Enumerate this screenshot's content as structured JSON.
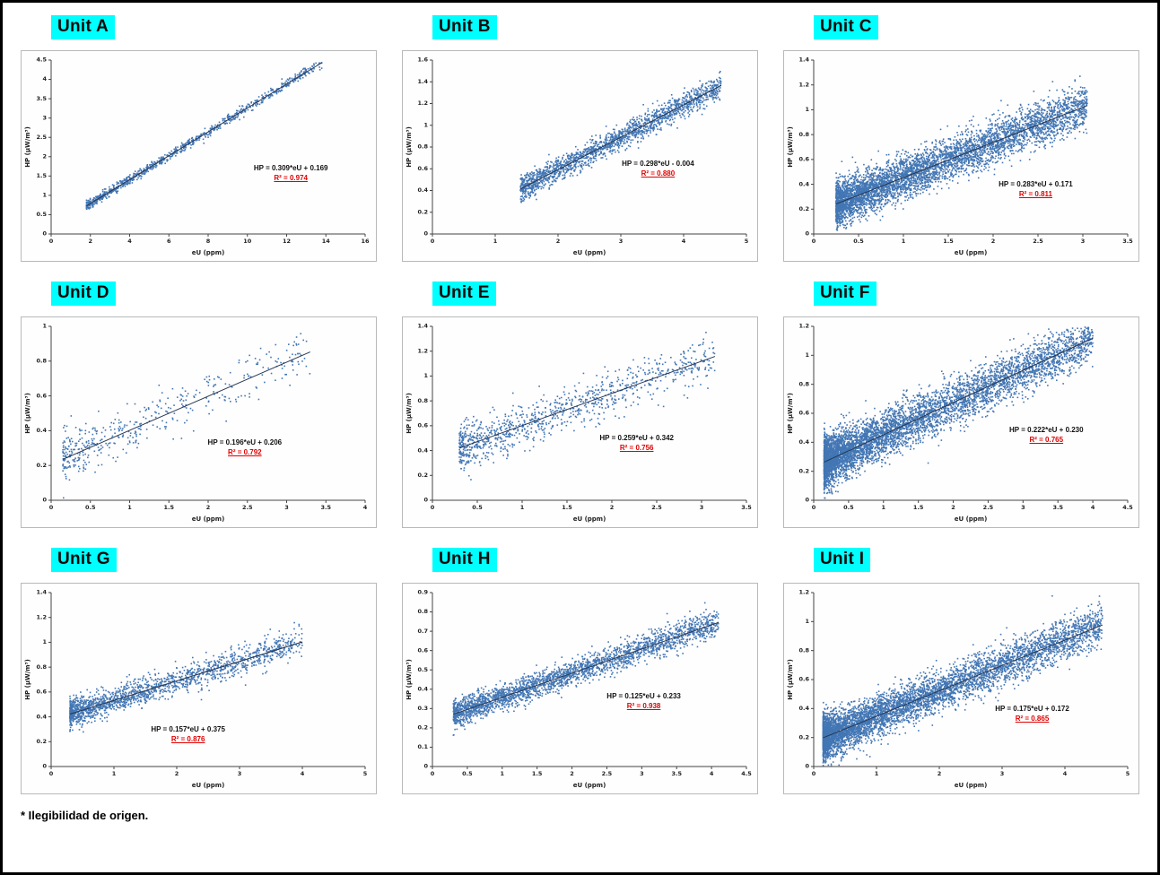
{
  "figure": {
    "footnote": "* Ilegibilidad de origen.",
    "colors": {
      "point": "#4276b4",
      "trend": "#26364f",
      "r2_text": "#e00000",
      "title_highlight": "#00ffff",
      "axis": "#444444"
    }
  },
  "chart_data": [
    {
      "type": "scatter",
      "title": "Unit A",
      "xlabel": "eU (ppm)",
      "ylabel": "HP (µW/m³)",
      "xlim": [
        0,
        16
      ],
      "xtick": 2,
      "ylim": [
        0,
        4.5
      ],
      "ytick": 0.5,
      "regression": {
        "slope": 0.309,
        "intercept": 0.169,
        "equation": "HP = 0.309*eU + 0.169",
        "r2": 0.974,
        "r2_text": "R² = 0.974"
      },
      "scatter": {
        "n": 900,
        "x_min": 1.8,
        "x_max": 13.8,
        "x_skew": 1.5,
        "noise": 0.06,
        "seed": 11
      },
      "annotation_pos": {
        "fx": 0.76,
        "fy": 0.58
      }
    },
    {
      "type": "scatter",
      "title": "Unit B",
      "xlabel": "eU (ppm)",
      "ylabel": "HP (µW/m³)",
      "xlim": [
        0,
        5
      ],
      "xtick": 1,
      "ylim": [
        0,
        1.6
      ],
      "ytick": 0.2,
      "regression": {
        "slope": 0.298,
        "intercept": -0.004,
        "equation": "HP = 0.298*eU - 0.004",
        "r2": 0.88,
        "r2_text": "R² = 0.880"
      },
      "scatter": {
        "n": 1800,
        "x_min": 1.4,
        "x_max": 4.6,
        "x_skew": 1.2,
        "noise": 0.055,
        "seed": 22
      },
      "annotation_pos": {
        "fx": 0.72,
        "fy": 0.56
      }
    },
    {
      "type": "scatter",
      "title": "Unit C",
      "xlabel": "eU (ppm)",
      "ylabel": "HP (µW/m³)",
      "xlim": [
        0,
        3.5
      ],
      "xtick": 0.5,
      "ylim": [
        0,
        1.4
      ],
      "ytick": 0.2,
      "regression": {
        "slope": 0.283,
        "intercept": 0.171,
        "equation": "HP = 0.283*eU + 0.171",
        "r2": 0.811,
        "r2_text": "R² = 0.811"
      },
      "scatter": {
        "n": 5200,
        "x_min": 0.25,
        "x_max": 3.05,
        "x_skew": 1.6,
        "noise": 0.085,
        "seed": 33
      },
      "annotation_pos": {
        "fx": 0.71,
        "fy": 0.66
      }
    },
    {
      "type": "scatter",
      "title": "Unit D",
      "xlabel": "eU (ppm)",
      "ylabel": "HP (µW/m³)",
      "xlim": [
        0,
        4
      ],
      "xtick": 0.5,
      "ylim": [
        0,
        1
      ],
      "ytick": 0.2,
      "regression": {
        "slope": 0.196,
        "intercept": 0.206,
        "equation": "HP = 0.196*eU + 0.206",
        "r2": 0.792,
        "r2_text": "R² = 0.792"
      },
      "scatter": {
        "n": 450,
        "x_min": 0.15,
        "x_max": 3.3,
        "x_skew": 1.9,
        "noise": 0.07,
        "seed": 44
      },
      "annotation_pos": {
        "fx": 0.63,
        "fy": 0.62
      }
    },
    {
      "type": "scatter",
      "title": "Unit E",
      "xlabel": "eU (ppm)",
      "ylabel": "HP (µW/m³)",
      "xlim": [
        0,
        3.5
      ],
      "xtick": 0.5,
      "ylim": [
        0,
        1.4
      ],
      "ytick": 0.2,
      "regression": {
        "slope": 0.259,
        "intercept": 0.342,
        "equation": "HP = 0.259*eU + 0.342",
        "r2": 0.756,
        "r2_text": "R² = 0.756"
      },
      "scatter": {
        "n": 1000,
        "x_min": 0.3,
        "x_max": 3.15,
        "x_skew": 1.6,
        "noise": 0.09,
        "seed": 55
      },
      "annotation_pos": {
        "fx": 0.66,
        "fy": 0.6
      }
    },
    {
      "type": "scatter",
      "title": "Unit F",
      "xlabel": "eU (ppm)",
      "ylabel": "HP (µW/m³)",
      "xlim": [
        0,
        4.5
      ],
      "xtick": 0.5,
      "ylim": [
        0,
        1.2
      ],
      "ytick": 0.2,
      "regression": {
        "slope": 0.222,
        "intercept": 0.23,
        "equation": "HP = 0.222*eU + 0.230",
        "r2": 0.765,
        "r2_text": "R² = 0.765"
      },
      "scatter": {
        "n": 6000,
        "x_min": 0.15,
        "x_max": 4.0,
        "x_skew": 2.1,
        "noise": 0.08,
        "seed": 66
      },
      "annotation_pos": {
        "fx": 0.74,
        "fy": 0.56
      }
    },
    {
      "type": "scatter",
      "title": "Unit G",
      "xlabel": "eU (ppm)",
      "ylabel": "HP (µW/m³)",
      "xlim": [
        0,
        5
      ],
      "xtick": 1,
      "ylim": [
        0,
        1.4
      ],
      "ytick": 0.2,
      "regression": {
        "slope": 0.157,
        "intercept": 0.375,
        "equation": "HP = 0.157*eU + 0.375",
        "r2": 0.876,
        "r2_text": "R² = 0.876"
      },
      "scatter": {
        "n": 1700,
        "x_min": 0.3,
        "x_max": 4.0,
        "x_skew": 1.8,
        "noise": 0.055,
        "seed": 77
      },
      "annotation_pos": {
        "fx": 0.47,
        "fy": 0.72
      }
    },
    {
      "type": "scatter",
      "title": "Unit H",
      "xlabel": "eU (ppm)",
      "ylabel": "HP (µW/m³)",
      "xlim": [
        0,
        4.5
      ],
      "xtick": 0.5,
      "ylim": [
        0,
        0.9
      ],
      "ytick": 0.1,
      "regression": {
        "slope": 0.125,
        "intercept": 0.233,
        "equation": "HP = 0.125*eU + 0.233",
        "r2": 0.938,
        "r2_text": "R² = 0.938"
      },
      "scatter": {
        "n": 2600,
        "x_min": 0.3,
        "x_max": 4.1,
        "x_skew": 1.3,
        "noise": 0.035,
        "seed": 88
      },
      "annotation_pos": {
        "fx": 0.68,
        "fy": 0.56
      }
    },
    {
      "type": "scatter",
      "title": "Unit I",
      "xlabel": "eU (ppm)",
      "ylabel": "HP (µW/m³)",
      "xlim": [
        0,
        5
      ],
      "xtick": 1,
      "ylim": [
        0,
        1.2
      ],
      "ytick": 0.2,
      "regression": {
        "slope": 0.175,
        "intercept": 0.172,
        "equation": "HP = 0.175*eU + 0.172",
        "r2": 0.865,
        "r2_text": "R² = 0.865"
      },
      "scatter": {
        "n": 6000,
        "x_min": 0.15,
        "x_max": 4.6,
        "x_skew": 2.0,
        "noise": 0.07,
        "seed": 99
      },
      "annotation_pos": {
        "fx": 0.7,
        "fy": 0.62
      }
    }
  ]
}
